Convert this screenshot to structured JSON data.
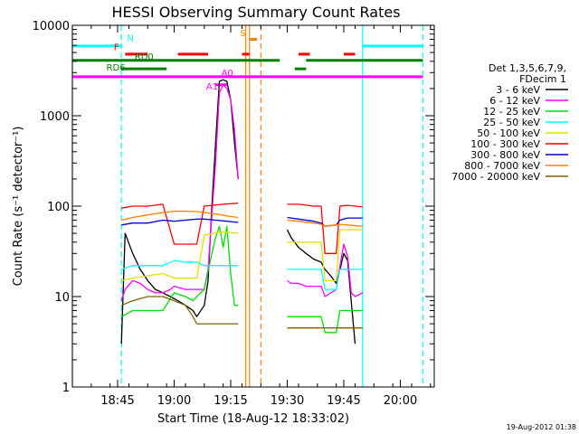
{
  "chart_data": {
    "type": "line",
    "title": "HESSI Observing Summary Count Rates",
    "xlabel": "Start Time (18-Aug-12 18:33:02)",
    "ylabel": "Count Rate (s⁻¹ detector⁻¹)",
    "y_scale": "log",
    "ylim": [
      1,
      10000
    ],
    "xlim_minutes": [
      0,
      96
    ],
    "x_ticks": [
      {
        "label": "18:45",
        "min": 12
      },
      {
        "label": "19:00",
        "min": 27
      },
      {
        "label": "19:15",
        "min": 42
      },
      {
        "label": "19:30",
        "min": 57
      },
      {
        "label": "19:45",
        "min": 72
      },
      {
        "label": "20:00",
        "min": 87
      }
    ],
    "y_ticks": [
      {
        "label": "1",
        "value": 1
      },
      {
        "label": "10",
        "value": 10
      },
      {
        "label": "100",
        "value": 100
      },
      {
        "label": "1000",
        "value": 1000
      },
      {
        "label": "10000",
        "value": 10000
      }
    ],
    "legend": {
      "placement": "right",
      "header1": "Det 1,3,5,6,7,9,",
      "header2": "FDecim 1"
    },
    "series": [
      {
        "name": "3 - 6 keV",
        "color": "#000000",
        "points": [
          [
            13,
            3
          ],
          [
            14,
            50
          ],
          [
            16,
            30
          ],
          [
            18,
            20
          ],
          [
            20,
            15
          ],
          [
            22,
            12
          ],
          [
            24,
            11
          ],
          [
            26,
            10
          ],
          [
            28,
            9
          ],
          [
            30,
            8
          ],
          [
            32,
            7
          ],
          [
            33,
            6
          ],
          [
            35,
            8
          ],
          [
            36,
            15
          ],
          [
            37,
            100
          ],
          [
            38,
            500
          ],
          [
            39,
            2400
          ],
          [
            40,
            2500
          ],
          [
            41,
            2400
          ],
          [
            42,
            1500
          ],
          [
            43,
            500
          ],
          [
            44,
            200
          ],
          [
            57,
            55
          ],
          [
            58,
            45
          ],
          [
            60,
            35
          ],
          [
            62,
            30
          ],
          [
            64,
            26
          ],
          [
            66,
            24
          ],
          [
            67,
            20
          ],
          [
            68,
            18
          ],
          [
            69,
            16
          ],
          [
            70,
            14
          ],
          [
            71,
            20
          ],
          [
            72,
            30
          ],
          [
            73,
            25
          ],
          [
            75,
            3
          ]
        ]
      },
      {
        "name": "6 - 12 keV",
        "color": "#ff00ff",
        "points": [
          [
            13,
            9
          ],
          [
            14,
            12
          ],
          [
            16,
            15
          ],
          [
            18,
            14
          ],
          [
            20,
            12
          ],
          [
            22,
            11
          ],
          [
            24,
            11
          ],
          [
            26,
            12
          ],
          [
            27,
            13
          ],
          [
            30,
            12
          ],
          [
            32,
            12
          ],
          [
            35,
            12
          ],
          [
            36,
            20
          ],
          [
            37,
            80
          ],
          [
            38,
            300
          ],
          [
            39,
            1800
          ],
          [
            40,
            2200
          ],
          [
            41,
            2000
          ],
          [
            42,
            1500
          ],
          [
            43,
            700
          ],
          [
            44,
            200
          ],
          [
            57,
            15
          ],
          [
            58,
            14
          ],
          [
            60,
            14
          ],
          [
            62,
            13
          ],
          [
            64,
            13
          ],
          [
            66,
            13
          ],
          [
            67,
            10
          ],
          [
            70,
            12
          ],
          [
            71,
            22
          ],
          [
            72,
            38
          ],
          [
            73,
            28
          ],
          [
            74,
            11
          ],
          [
            75,
            10
          ],
          [
            77,
            11
          ]
        ]
      },
      {
        "name": "12 - 25 keV",
        "color": "#00e000",
        "points": [
          [
            13,
            6
          ],
          [
            16,
            7
          ],
          [
            20,
            7
          ],
          [
            24,
            7
          ],
          [
            27,
            11
          ],
          [
            30,
            10
          ],
          [
            32,
            9
          ],
          [
            33,
            10
          ],
          [
            35,
            12
          ],
          [
            37,
            30
          ],
          [
            38,
            45
          ],
          [
            39,
            60
          ],
          [
            40,
            35
          ],
          [
            41,
            60
          ],
          [
            42,
            18
          ],
          [
            43,
            8
          ],
          [
            44,
            8
          ],
          [
            57,
            6
          ],
          [
            60,
            6
          ],
          [
            64,
            6
          ],
          [
            66,
            6
          ],
          [
            67,
            4
          ],
          [
            70,
            4
          ],
          [
            71,
            7
          ],
          [
            73,
            7
          ],
          [
            77,
            7
          ]
        ]
      },
      {
        "name": "25 - 50 keV",
        "color": "#00ffff",
        "points": [
          [
            13,
            20
          ],
          [
            16,
            22
          ],
          [
            20,
            22
          ],
          [
            24,
            22
          ],
          [
            27,
            25
          ],
          [
            30,
            24
          ],
          [
            32,
            24
          ],
          [
            33,
            24
          ],
          [
            35,
            22
          ],
          [
            38,
            22
          ],
          [
            41,
            22
          ],
          [
            44,
            22
          ],
          [
            57,
            20
          ],
          [
            60,
            20
          ],
          [
            64,
            20
          ],
          [
            66,
            20
          ],
          [
            67,
            12
          ],
          [
            70,
            12
          ],
          [
            71,
            20
          ],
          [
            73,
            20
          ],
          [
            77,
            20
          ]
        ]
      },
      {
        "name": "50 - 100 keV",
        "color": "#e0e000",
        "points": [
          [
            13,
            15
          ],
          [
            16,
            16
          ],
          [
            20,
            17
          ],
          [
            24,
            18
          ],
          [
            27,
            16
          ],
          [
            30,
            16
          ],
          [
            33,
            16
          ],
          [
            35,
            48
          ],
          [
            40,
            52
          ],
          [
            44,
            50
          ],
          [
            57,
            40
          ],
          [
            60,
            40
          ],
          [
            64,
            40
          ],
          [
            66,
            40
          ],
          [
            67,
            15
          ],
          [
            70,
            15
          ],
          [
            71,
            55
          ],
          [
            73,
            55
          ],
          [
            77,
            55
          ]
        ]
      },
      {
        "name": "100 - 300 keV",
        "color": "#ff0000",
        "points": [
          [
            13,
            95
          ],
          [
            16,
            100
          ],
          [
            20,
            100
          ],
          [
            24,
            105
          ],
          [
            27,
            38
          ],
          [
            30,
            38
          ],
          [
            33,
            38
          ],
          [
            35,
            100
          ],
          [
            40,
            105
          ],
          [
            44,
            108
          ],
          [
            57,
            105
          ],
          [
            60,
            105
          ],
          [
            64,
            100
          ],
          [
            66,
            100
          ],
          [
            67,
            30
          ],
          [
            70,
            30
          ],
          [
            71,
            100
          ],
          [
            73,
            102
          ],
          [
            77,
            98
          ]
        ]
      },
      {
        "name": "300 - 800 keV",
        "color": "#0000cc",
        "points": [
          [
            13,
            62
          ],
          [
            16,
            65
          ],
          [
            20,
            65
          ],
          [
            24,
            70
          ],
          [
            27,
            68
          ],
          [
            30,
            70
          ],
          [
            33,
            72
          ],
          [
            35,
            72
          ],
          [
            38,
            70
          ],
          [
            41,
            68
          ],
          [
            44,
            66
          ],
          [
            57,
            75
          ],
          [
            60,
            72
          ],
          [
            64,
            68
          ],
          [
            66,
            65
          ],
          [
            67,
            60
          ],
          [
            70,
            62
          ],
          [
            71,
            70
          ],
          [
            73,
            74
          ],
          [
            77,
            74
          ]
        ]
      },
      {
        "name": "800 - 7000 keV",
        "color": "#ff8000",
        "points": [
          [
            13,
            70
          ],
          [
            16,
            75
          ],
          [
            20,
            80
          ],
          [
            24,
            85
          ],
          [
            27,
            88
          ],
          [
            30,
            88
          ],
          [
            33,
            87
          ],
          [
            35,
            85
          ],
          [
            38,
            82
          ],
          [
            41,
            78
          ],
          [
            44,
            75
          ],
          [
            57,
            70
          ],
          [
            60,
            68
          ],
          [
            64,
            65
          ],
          [
            66,
            63
          ],
          [
            67,
            60
          ],
          [
            70,
            62
          ],
          [
            71,
            63
          ],
          [
            73,
            62
          ],
          [
            77,
            60
          ]
        ]
      },
      {
        "name": "7000 - 20000 keV",
        "color": "#806000",
        "points": [
          [
            13,
            8
          ],
          [
            16,
            9
          ],
          [
            20,
            10
          ],
          [
            24,
            10
          ],
          [
            27,
            9
          ],
          [
            30,
            8
          ],
          [
            32,
            6
          ],
          [
            33,
            5
          ],
          [
            35,
            5
          ],
          [
            38,
            5
          ],
          [
            41,
            5
          ],
          [
            44,
            5
          ],
          [
            57,
            4.5
          ],
          [
            60,
            4.5
          ],
          [
            64,
            4.5
          ],
          [
            66,
            4.5
          ],
          [
            67,
            4.5
          ],
          [
            70,
            4.5
          ],
          [
            71,
            4.5
          ],
          [
            73,
            4.5
          ],
          [
            77,
            4.5
          ]
        ]
      }
    ],
    "flags": [
      {
        "label": "N",
        "color": "#00ffff",
        "y": 5900,
        "segments": [
          [
            0,
            13
          ],
          [
            77,
            93
          ]
        ]
      },
      {
        "label": "F",
        "color": "#ff0000",
        "y": 4800,
        "segments": [
          [
            14,
            20
          ],
          [
            28,
            36
          ],
          [
            45,
            47
          ],
          [
            60,
            63
          ],
          [
            72,
            75
          ]
        ]
      },
      {
        "label": "RD0",
        "color": "#008000",
        "y": 4100,
        "segments": [
          [
            0,
            55
          ],
          [
            62,
            93
          ]
        ]
      },
      {
        "label": "RD6",
        "color": "#008000",
        "y": 3300,
        "segments": [
          [
            13,
            25
          ],
          [
            59,
            62
          ]
        ]
      },
      {
        "label": "A0",
        "color": "#ff00ff",
        "y": 2700,
        "segments": [
          [
            0,
            93
          ]
        ]
      },
      {
        "label": "A1",
        "color": "#ff00ff",
        "y": 2200,
        "segments": [
          [
            38,
            41
          ]
        ]
      },
      {
        "label": "S",
        "color": "#ff8000",
        "y": 7000,
        "segments": [
          [
            47,
            49
          ]
        ]
      }
    ],
    "vlines": [
      {
        "color": "#00ffff",
        "style": "solid",
        "min": 0
      },
      {
        "color": "#00ffff",
        "style": "dashed",
        "min": 13
      },
      {
        "color": "#00ffff",
        "style": "solid",
        "min": 77
      },
      {
        "color": "#00ffff",
        "style": "dashed",
        "min": 93
      },
      {
        "color": "#ff8000",
        "style": "solid",
        "min": 46
      },
      {
        "color": "#ff8000",
        "style": "solid",
        "min": 47
      },
      {
        "color": "#ff8000",
        "style": "dashed",
        "min": 50
      }
    ],
    "flag_labels": [
      {
        "text": "N",
        "color": "#00ffff",
        "min": 14.5,
        "y": 6700
      },
      {
        "text": "F",
        "color": "#ff0000",
        "min": 11,
        "y": 5300
      },
      {
        "text": "RD0",
        "color": "#008000",
        "min": 16.5,
        "y": 4150
      },
      {
        "text": "RD6",
        "color": "#008000",
        "min": 9,
        "y": 3150
      },
      {
        "text": "A0",
        "color": "#ff00ff",
        "min": 39.5,
        "y": 2750
      },
      {
        "text": "A1",
        "color": "#ff00ff",
        "min": 35.5,
        "y": 1950
      },
      {
        "text": "S",
        "color": "#ff8000",
        "min": 44.5,
        "y": 7600
      }
    ],
    "timestamp": "19-Aug-2012 01:38"
  }
}
